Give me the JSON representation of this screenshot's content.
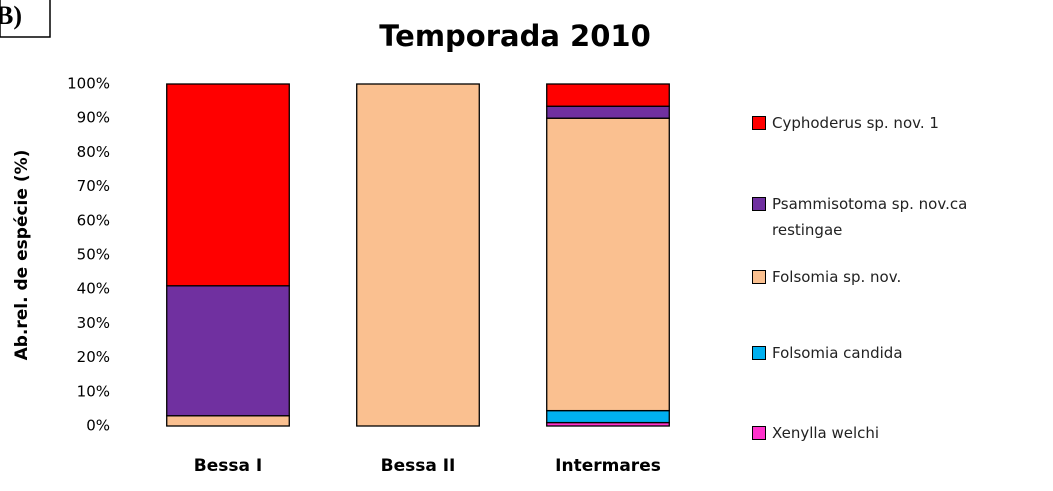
{
  "chart_data": {
    "type": "stacked_bar",
    "panel_label": "B)",
    "title": "Temporada 2010",
    "y_label": "Ab.rel. de espécie (%)",
    "categories": [
      "Bessa I",
      "Bessa II",
      "Intermares"
    ],
    "series": [
      {
        "name": "Xenylla welchi",
        "color": "#ff33cc",
        "values": [
          0,
          0,
          1
        ]
      },
      {
        "name": "Folsomia candida",
        "color": "#00b0f0",
        "values": [
          0,
          0,
          3.5
        ]
      },
      {
        "name": "Folsomia sp. nov.",
        "color": "#fac090",
        "values": [
          3,
          100,
          85.5
        ]
      },
      {
        "name": "Psammisotoma  sp. nov.ca restingae",
        "color": "#7030a0",
        "values": [
          38,
          0,
          3.5
        ]
      },
      {
        "name": "Cyphoderus sp. nov. 1",
        "color": "#ff0000",
        "values": [
          59,
          0,
          6.5
        ]
      }
    ],
    "ylim": [
      0,
      100
    ],
    "yticks": [
      {
        "value": 0,
        "label": "0%"
      },
      {
        "value": 10,
        "label": "10%"
      },
      {
        "value": 20,
        "label": "20%"
      },
      {
        "value": 30,
        "label": "30%"
      },
      {
        "value": 40,
        "label": "40%"
      },
      {
        "value": 50,
        "label": "50%"
      },
      {
        "value": 60,
        "label": "60%"
      },
      {
        "value": 70,
        "label": "70%"
      },
      {
        "value": 80,
        "label": "80%"
      },
      {
        "value": 90,
        "label": "90%"
      },
      {
        "value": 100,
        "label": "100%"
      }
    ],
    "grid": false,
    "legend": "right"
  }
}
